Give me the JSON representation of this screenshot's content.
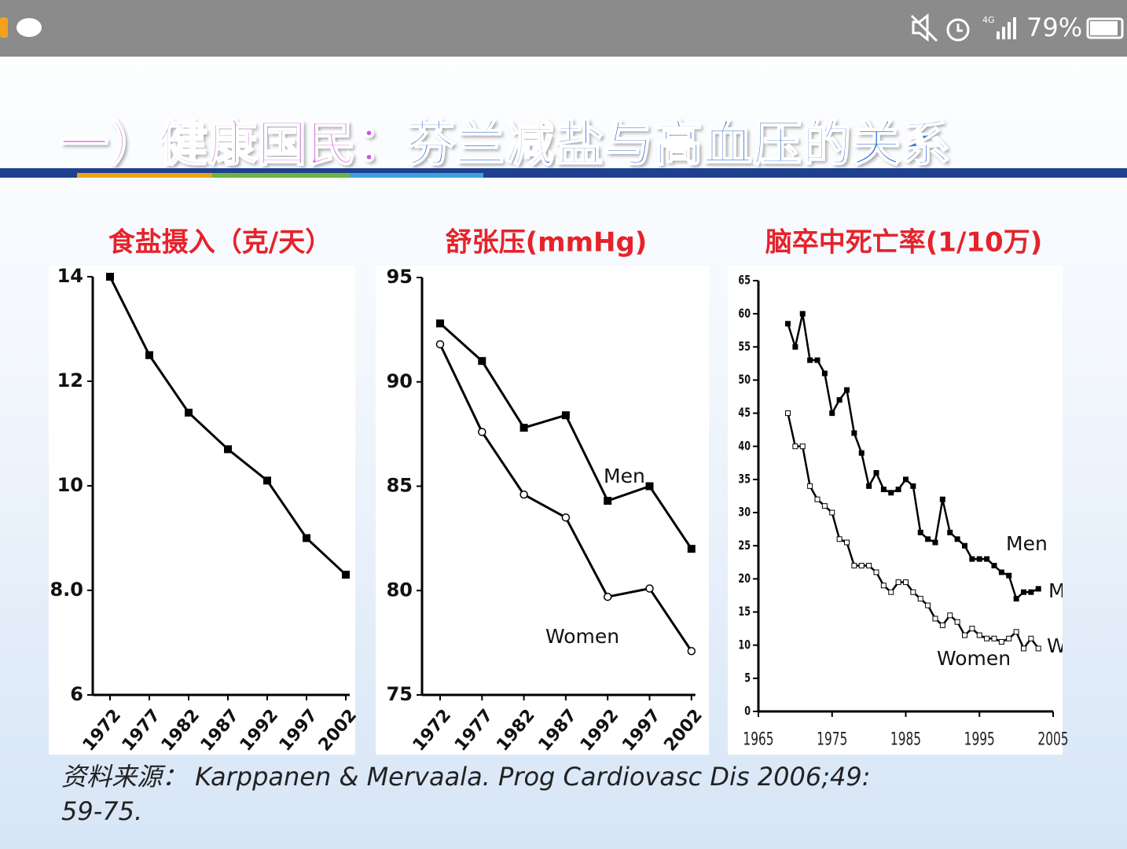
{
  "status_bar": {
    "network": "4G",
    "battery": "79%"
  },
  "slide": {
    "title_parts": [
      "一）",
      "健康国民：",
      "芬兰减盐与高血压的关系"
    ],
    "source": "资料来源： Karppanen & Mervaala. Prog Cardiovasc Dis  2006;49: 59-75."
  },
  "chart_data": [
    {
      "type": "line",
      "title": "食盐摄入（克/天）",
      "categories": [
        "1972",
        "1977",
        "1982",
        "1987",
        "1992",
        "1997",
        "2002"
      ],
      "values": [
        14,
        12.5,
        11.4,
        10.7,
        10.1,
        9.0,
        8.3
      ],
      "color": "#000000",
      "ylim": [
        6,
        14
      ],
      "yticks": [
        6,
        {
          "value": 8,
          "label": "8.0"
        },
        10,
        12,
        14
      ],
      "grid": false
    },
    {
      "type": "line",
      "title": "舒张压(mmHg)",
      "categories": [
        "1972",
        "1977",
        "1982",
        "1987",
        "1992",
        "1997",
        "2002"
      ],
      "series": [
        {
          "name": "Men",
          "color": "#000000",
          "values": [
            92.8,
            91.0,
            87.8,
            88.4,
            84.3,
            85.0,
            82.0
          ]
        },
        {
          "name": "Women",
          "color": "#000000",
          "values": [
            91.8,
            87.6,
            84.6,
            83.5,
            79.7,
            80.1,
            77.1
          ]
        }
      ],
      "ylim": [
        75,
        95
      ],
      "yticks": [
        75,
        80,
        85,
        90,
        95
      ],
      "grid": false
    },
    {
      "type": "line",
      "title": "脑卒中死亡率(1/10万)",
      "x": [
        1969,
        1970,
        1971,
        1972,
        1973,
        1974,
        1975,
        1976,
        1977,
        1978,
        1979,
        1980,
        1981,
        1982,
        1983,
        1984,
        1985,
        1986,
        1987,
        1988,
        1989,
        1990,
        1991,
        1992,
        1993,
        1994,
        1995,
        1996,
        1997,
        1998,
        1999,
        2000,
        2001,
        2002,
        2003
      ],
      "series": [
        {
          "name": "Men",
          "color": "#000000",
          "values": [
            58.5,
            55,
            60,
            53,
            53,
            51,
            45,
            47,
            48.5,
            42,
            39,
            34,
            36,
            33.5,
            33,
            33.5,
            35,
            34,
            27,
            26,
            25.5,
            32,
            27,
            26,
            25,
            23,
            23,
            23,
            22,
            21,
            20.5,
            17,
            18,
            18,
            18.5
          ]
        },
        {
          "name": "Women",
          "color": "#000000",
          "values": [
            45,
            40,
            40,
            34,
            32,
            31,
            30,
            26,
            25.5,
            22,
            22,
            22,
            21,
            19,
            18,
            19.5,
            19.5,
            18,
            17,
            16,
            14,
            13,
            14.5,
            13.5,
            11.5,
            12.5,
            11.5,
            11,
            11,
            10.5,
            11,
            12,
            9.5,
            11,
            9.5
          ]
        }
      ],
      "xlim": [
        1965,
        2005
      ],
      "xticks": [
        1965,
        1975,
        1985,
        1995,
        2005
      ],
      "ylim": [
        0,
        65
      ],
      "yticks": [
        0,
        5,
        10,
        15,
        20,
        25,
        30,
        35,
        40,
        45,
        50,
        55,
        60,
        65
      ],
      "grid": false
    }
  ]
}
